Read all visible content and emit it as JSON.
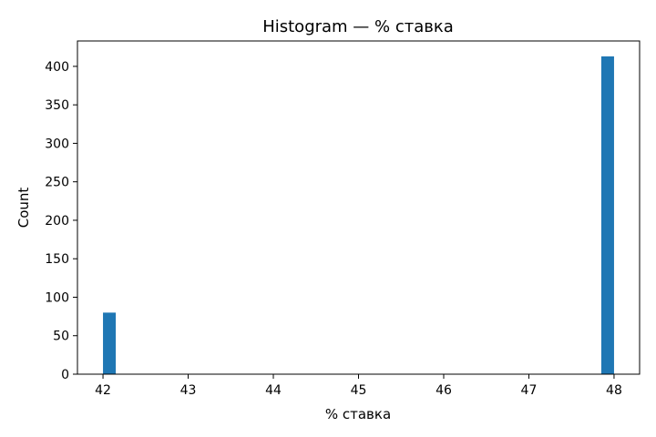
{
  "chart_data": {
    "type": "bar",
    "title": "Histogram — % ставка",
    "xlabel": "% ставка",
    "ylabel": "Count",
    "xlim": [
      41.7,
      48.3
    ],
    "ylim": [
      0,
      433
    ],
    "xticks": [
      42,
      43,
      44,
      45,
      46,
      47,
      48
    ],
    "yticks": [
      0,
      50,
      100,
      150,
      200,
      250,
      300,
      350,
      400
    ],
    "bin_width": 0.15,
    "bars": [
      {
        "x0": 42.0,
        "x1": 42.15,
        "count": 80
      },
      {
        "x0": 47.85,
        "x1": 48.0,
        "count": 413
      }
    ],
    "color": "#1f77b4",
    "grid": false,
    "legend": "none"
  }
}
